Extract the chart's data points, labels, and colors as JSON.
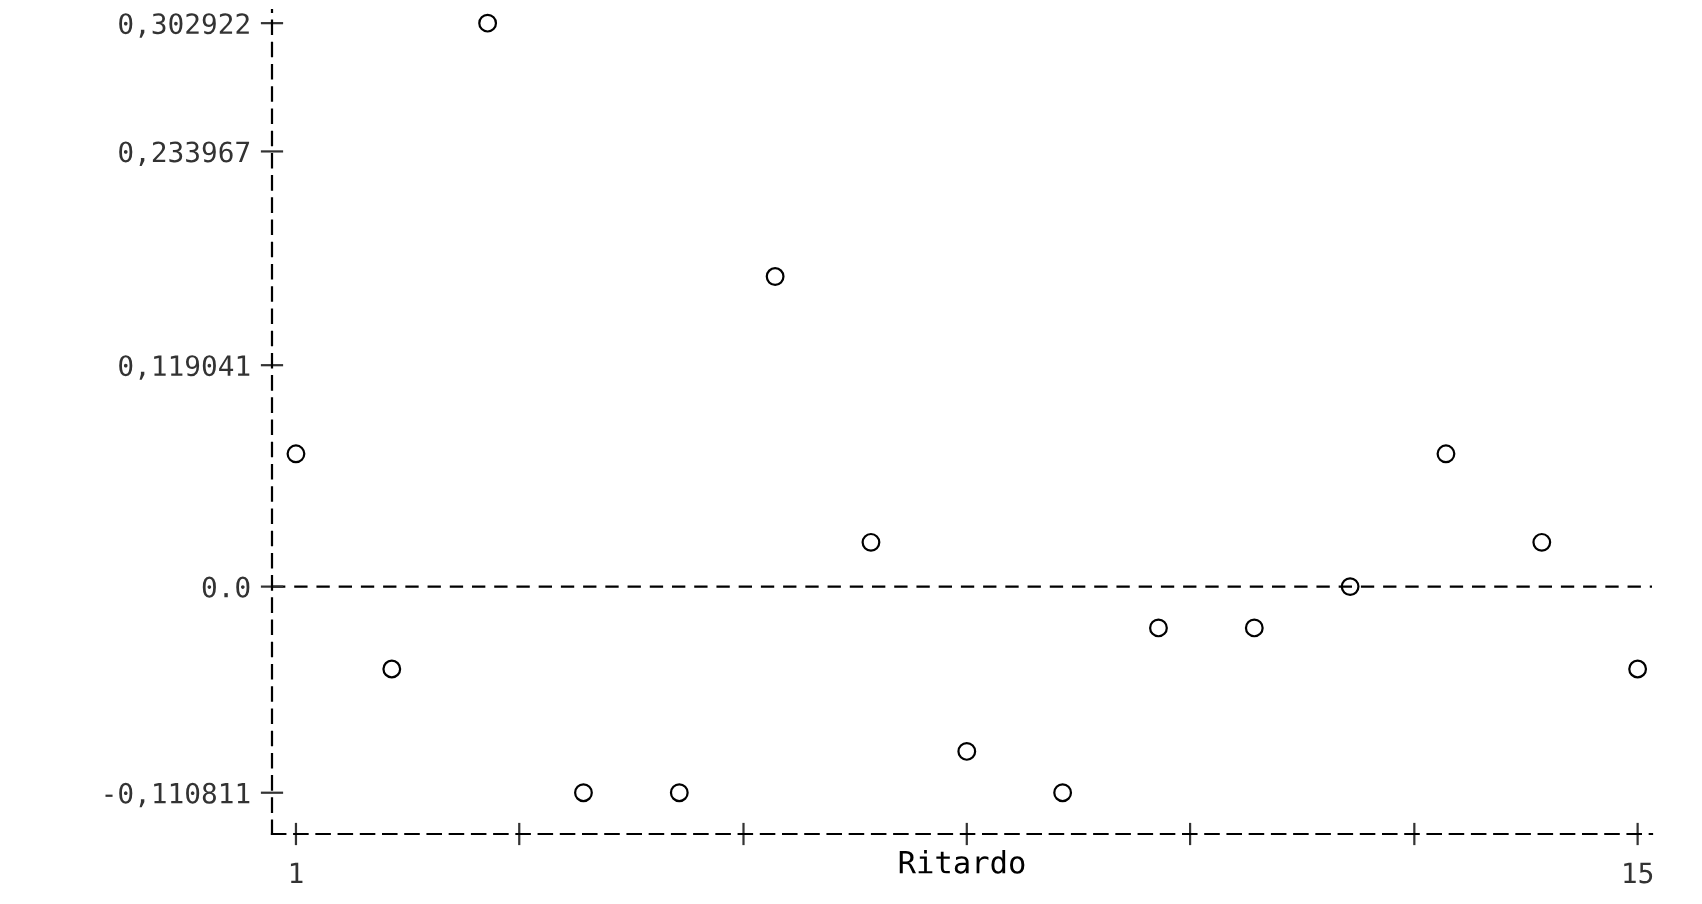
{
  "chart_data": {
    "type": "scatter",
    "xlabel": "Ritardo",
    "x": [
      1,
      2,
      3,
      4,
      5,
      6,
      7,
      8,
      9,
      10,
      11,
      12,
      13,
      14,
      15
    ],
    "values": [
      0.0714,
      -0.0443,
      0.302922,
      -0.110811,
      -0.110811,
      0.1667,
      0.0238,
      -0.0886,
      -0.110811,
      -0.0222,
      -0.0222,
      0.0,
      0.0714,
      0.0238,
      -0.0443
    ],
    "color": "#000000",
    "marker": "circle",
    "grid": false,
    "xlim": [
      0.75,
      15.15
    ],
    "ylim": [
      -0.133,
      0.31
    ],
    "xticks": [
      1,
      {
        "value": 3.33,
        "label": null
      },
      {
        "value": 5.67,
        "label": null
      },
      {
        "value": 8,
        "label": null
      },
      {
        "value": 10.33,
        "label": null
      },
      {
        "value": 12.67,
        "label": null
      },
      15
    ],
    "yticks": [
      {
        "value": -0.110811,
        "label": "-0,110811"
      },
      {
        "value": 0.0,
        "label": "0.0"
      },
      {
        "value": 0.119041,
        "label": "0,119041"
      },
      {
        "value": 0.233967,
        "label": "0,233967"
      },
      {
        "value": 0.302922,
        "label": "0,302922"
      }
    ],
    "ref_lines": [
      {
        "axis": "y",
        "value": 0.0,
        "label": null,
        "line_style": "dashed",
        "color": "#000000"
      }
    ]
  }
}
